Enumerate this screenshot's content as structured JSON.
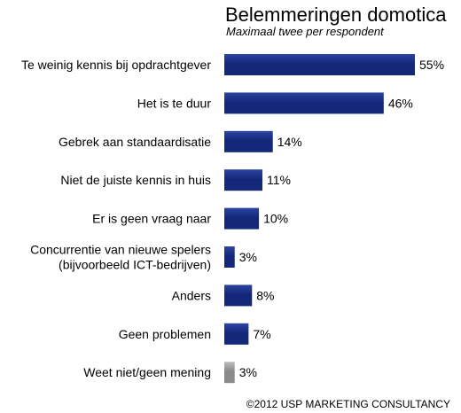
{
  "chart_data": {
    "type": "bar",
    "orientation": "horizontal",
    "title": "Belemmeringen domotica",
    "subtitle": "Maximaal twee per respondent",
    "categories": [
      [
        "Te weinig kennis bij opdrachtgever"
      ],
      [
        "Het is te duur"
      ],
      [
        "Gebrek aan standaardisatie"
      ],
      [
        "Niet de juiste kennis in huis"
      ],
      [
        "Er is geen vraag naar"
      ],
      [
        "Concurrentie van nieuwe spelers",
        "(bijvoorbeeld ICT-bedrijven)"
      ],
      [
        "Anders"
      ],
      [
        "Geen problemen"
      ],
      [
        "Weet niet/geen mening"
      ]
    ],
    "values": [
      55,
      46,
      14,
      11,
      10,
      3,
      8,
      7,
      3
    ],
    "value_labels": [
      "55%",
      "46%",
      "14%",
      "11%",
      "10%",
      "3%",
      "8%",
      "7%",
      "3%"
    ],
    "unit": "%",
    "xlim": [
      0,
      55
    ],
    "grid": false,
    "legend": "none",
    "colors": {
      "bar": "#14287a",
      "bar_light": "#2c45a0",
      "bar_muted": "#8a8a8a",
      "bar_muted_light": "#bdbdbd"
    },
    "muted_categories": [
      8
    ]
  },
  "footer": "©2012 USP MARKETING CONSULTANCY"
}
